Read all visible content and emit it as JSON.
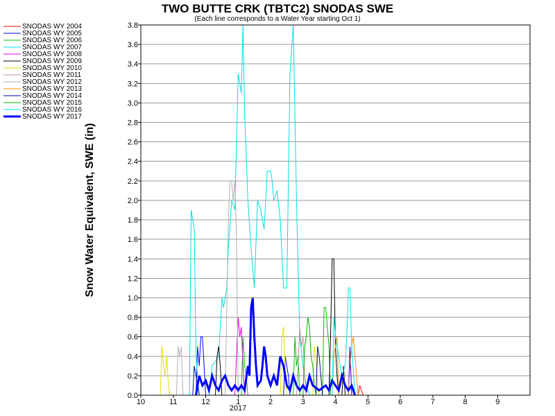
{
  "chart_data": {
    "type": "line",
    "title": "TWO BUTTE CRK (TBTC2) SNODAS SWE",
    "subtitle": "(Each line corresponds to a Water Year starting Oct 1)",
    "ylabel": "Snow Water Equivalent, SWE (in)",
    "xlabel": "",
    "year_label": "2017",
    "ylim": [
      0,
      3.8
    ],
    "yticks": [
      "0.0",
      "0.2",
      "0.4",
      "0.6",
      "0.8",
      "1.0",
      "1.2",
      "1.4",
      "1.6",
      "1.8",
      "2.0",
      "2.2",
      "2.4",
      "2.6",
      "2.8",
      "3.0",
      "3.2",
      "3.4",
      "3.6",
      "3.8"
    ],
    "xlim": [
      10,
      22
    ],
    "xticks": [
      {
        "v": 10,
        "label": "10"
      },
      {
        "v": 11,
        "label": "11"
      },
      {
        "v": 12,
        "label": "12"
      },
      {
        "v": 13,
        "label": "1"
      },
      {
        "v": 14,
        "label": "2"
      },
      {
        "v": 15,
        "label": "3"
      },
      {
        "v": 16,
        "label": "4"
      },
      {
        "v": 17,
        "label": "5"
      },
      {
        "v": 18,
        "label": "6"
      },
      {
        "v": 19,
        "label": "7"
      },
      {
        "v": 20,
        "label": "8"
      },
      {
        "v": 21,
        "label": "9"
      }
    ],
    "grid": true,
    "legend_position": "left",
    "series": [
      {
        "name": "SNODAS WY 2004",
        "color": "#ff0000",
        "width": 1,
        "x": [
          16.7,
          16.75,
          16.8,
          16.85,
          16.9
        ],
        "y": [
          0,
          0.1,
          0.05,
          0,
          0
        ]
      },
      {
        "name": "SNODAS WY 2005",
        "color": "#0000ff",
        "width": 1,
        "x": [
          11.7,
          11.75,
          11.8,
          11.85,
          11.9,
          11.95,
          12.0,
          14.4,
          14.45,
          14.5,
          14.55,
          14.6,
          16.4,
          16.45,
          16.5
        ],
        "y": [
          0,
          0.5,
          0.3,
          0.6,
          0.6,
          0.3,
          0,
          0,
          0.4,
          0.3,
          0.2,
          0,
          0,
          0.5,
          0
        ]
      },
      {
        "name": "SNODAS WY 2006",
        "color": "#00c000",
        "width": 1,
        "x": [
          13.1,
          13.15,
          13.2,
          13.25,
          13.3,
          14.7,
          14.75,
          14.8,
          14.85,
          14.9,
          15.6,
          15.65,
          15.7,
          15.75,
          15.8,
          15.85
        ],
        "y": [
          0,
          0.6,
          0.3,
          0.2,
          0,
          0,
          0.6,
          0.3,
          0.4,
          0,
          0,
          0.9,
          0.9,
          0.7,
          0.5,
          0
        ]
      },
      {
        "name": "SNODAS WY 2007",
        "color": "#00e0e0",
        "width": 1,
        "x": [
          11.5,
          11.55,
          11.6,
          11.65,
          11.7,
          11.75,
          11.8,
          12.1,
          12.2,
          12.4,
          12.5,
          12.55,
          12.6,
          12.65,
          12.7,
          12.8,
          12.9,
          13.0,
          13.1,
          13.15,
          13.2,
          13.3,
          13.4,
          13.5,
          13.6,
          13.7,
          13.8,
          13.9,
          14.0,
          14.05,
          14.1,
          14.2,
          14.3,
          14.4,
          14.5,
          14.6,
          14.7,
          14.8,
          14.9,
          15.0,
          15.1,
          15.2
        ],
        "y": [
          0,
          1.9,
          1.8,
          1.7,
          0.4,
          0.2,
          0,
          0,
          0.3,
          0.4,
          1.0,
          0.9,
          1.0,
          1.1,
          1.5,
          2.0,
          1.9,
          3.3,
          3.1,
          3.8,
          2.9,
          2.0,
          1.5,
          1.1,
          2.0,
          1.9,
          1.7,
          2.3,
          2.3,
          2.2,
          2.0,
          2.1,
          1.8,
          1.1,
          1.1,
          3.3,
          3.8,
          2.0,
          0.6,
          0.3,
          0.1,
          0
        ]
      },
      {
        "name": "SNODAS WY 2008",
        "color": "#e000e0",
        "width": 1,
        "x": [
          12.9,
          12.95,
          13.0,
          13.05,
          13.1,
          13.15,
          13.2
        ],
        "y": [
          0,
          0.4,
          0.8,
          0.6,
          0.7,
          0.3,
          0
        ]
      },
      {
        "name": "SNODAS WY 2009",
        "color": "#000000",
        "width": 1,
        "x": [
          12.3,
          12.35,
          12.4,
          12.45,
          12.5,
          15.8,
          15.85,
          15.9,
          15.95,
          16.0,
          16.05,
          16.1,
          16.2,
          16.25,
          16.3
        ],
        "y": [
          0,
          0.4,
          0.5,
          0.3,
          0,
          0,
          0.6,
          1.4,
          1.4,
          0.5,
          0.2,
          0,
          0,
          0.3,
          0
        ]
      },
      {
        "name": "SNODAS WY 2010",
        "color": "#e0e000",
        "width": 1,
        "x": [
          10.6,
          10.65,
          10.7,
          10.75,
          10.8,
          10.85,
          10.9,
          14.3,
          14.35,
          14.4,
          14.45,
          14.5,
          15.3,
          15.35,
          15.4,
          15.45,
          15.5
        ],
        "y": [
          0,
          0.5,
          0.3,
          0.2,
          0.4,
          0.1,
          0,
          0,
          0.6,
          0.7,
          0.3,
          0,
          0,
          0.5,
          0.4,
          0.1,
          0
        ]
      },
      {
        "name": "SNODAS WY 2011",
        "color": "#c09090",
        "width": 1,
        "x": [
          14.8,
          14.85,
          14.9,
          14.95,
          15.0,
          15.05,
          15.1
        ],
        "y": [
          0,
          0.3,
          0.7,
          0.5,
          0.6,
          0.2,
          0
        ]
      },
      {
        "name": "SNODAS WY 2012",
        "color": "#b0b0b0",
        "width": 1,
        "x": [
          11.1,
          11.15,
          11.2,
          11.25,
          11.3,
          12.6,
          12.65,
          12.7,
          12.75,
          12.8,
          12.85,
          12.9,
          12.95,
          13.0
        ],
        "y": [
          0,
          0.5,
          0.4,
          0.5,
          0,
          0,
          0.9,
          1.8,
          2.2,
          2.2,
          2.0,
          2.2,
          1.6,
          0
        ]
      },
      {
        "name": "SNODAS WY 2013",
        "color": "#ff9000",
        "width": 1,
        "x": [
          15.9,
          15.95,
          16.0,
          16.05,
          16.1,
          16.4,
          16.45,
          16.5,
          16.55,
          16.6,
          16.65,
          16.7
        ],
        "y": [
          0,
          0.4,
          0.5,
          0.6,
          0,
          0,
          0.3,
          0.5,
          0.6,
          0.4,
          0.2,
          0
        ]
      },
      {
        "name": "SNODAS WY 2014",
        "color": "#0000a0",
        "width": 1,
        "x": [
          11.6,
          11.65,
          11.7,
          11.75,
          11.8,
          15.4,
          15.45,
          15.5,
          15.55,
          15.6
        ],
        "y": [
          0,
          0.3,
          0.2,
          0.1,
          0,
          0,
          0.5,
          0.4,
          0.2,
          0
        ]
      },
      {
        "name": "SNODAS WY 2015",
        "color": "#00b000",
        "width": 1,
        "x": [
          15.0,
          15.05,
          15.1,
          15.15,
          15.2,
          15.25,
          15.3,
          15.35,
          15.4
        ],
        "y": [
          0,
          0.5,
          0.6,
          0.8,
          0.7,
          0.4,
          0.3,
          0.1,
          0
        ]
      },
      {
        "name": "SNODAS WY 2016",
        "color": "#00e8e8",
        "width": 1,
        "x": [
          15.9,
          15.95,
          16.0,
          16.1,
          16.2,
          16.3,
          16.35,
          16.4,
          16.45,
          16.5,
          16.6
        ],
        "y": [
          0,
          0.8,
          0.6,
          0.4,
          0.2,
          0.3,
          0.6,
          1.1,
          1.1,
          0.5,
          0
        ]
      },
      {
        "name": "SNODAS WY 2017",
        "color": "#0000ff",
        "width": 3,
        "x": [
          11.7,
          11.8,
          11.9,
          12.0,
          12.1,
          12.2,
          12.3,
          12.4,
          12.5,
          12.6,
          12.7,
          12.8,
          12.9,
          13.0,
          13.1,
          13.2,
          13.3,
          13.35,
          13.4,
          13.45,
          13.5,
          13.55,
          13.6,
          13.7,
          13.75,
          13.8,
          13.85,
          13.9,
          14.0,
          14.1,
          14.2,
          14.3,
          14.4,
          14.5,
          14.6,
          14.7,
          14.8,
          14.9,
          15.0,
          15.1,
          15.2,
          15.3,
          15.5,
          15.7,
          15.8,
          15.9,
          16.0,
          16.1,
          16.2,
          16.3,
          16.4,
          16.5,
          16.6
        ],
        "y": [
          0,
          0.2,
          0.1,
          0.15,
          0.05,
          0.2,
          0.1,
          0.05,
          0.15,
          0.2,
          0.1,
          0.05,
          0.1,
          0.05,
          0.1,
          0.05,
          0.3,
          0.2,
          0.9,
          1.0,
          0.6,
          0.3,
          0.1,
          0.15,
          0.3,
          0.5,
          0.4,
          0.2,
          0.1,
          0.2,
          0.1,
          0.4,
          0.3,
          0.1,
          0.05,
          0.2,
          0.1,
          0.05,
          0.1,
          0.05,
          0.2,
          0.1,
          0.05,
          0.1,
          0.05,
          0.15,
          0.1,
          0.05,
          0.2,
          0.1,
          0.05,
          0.1,
          0
        ]
      }
    ]
  }
}
